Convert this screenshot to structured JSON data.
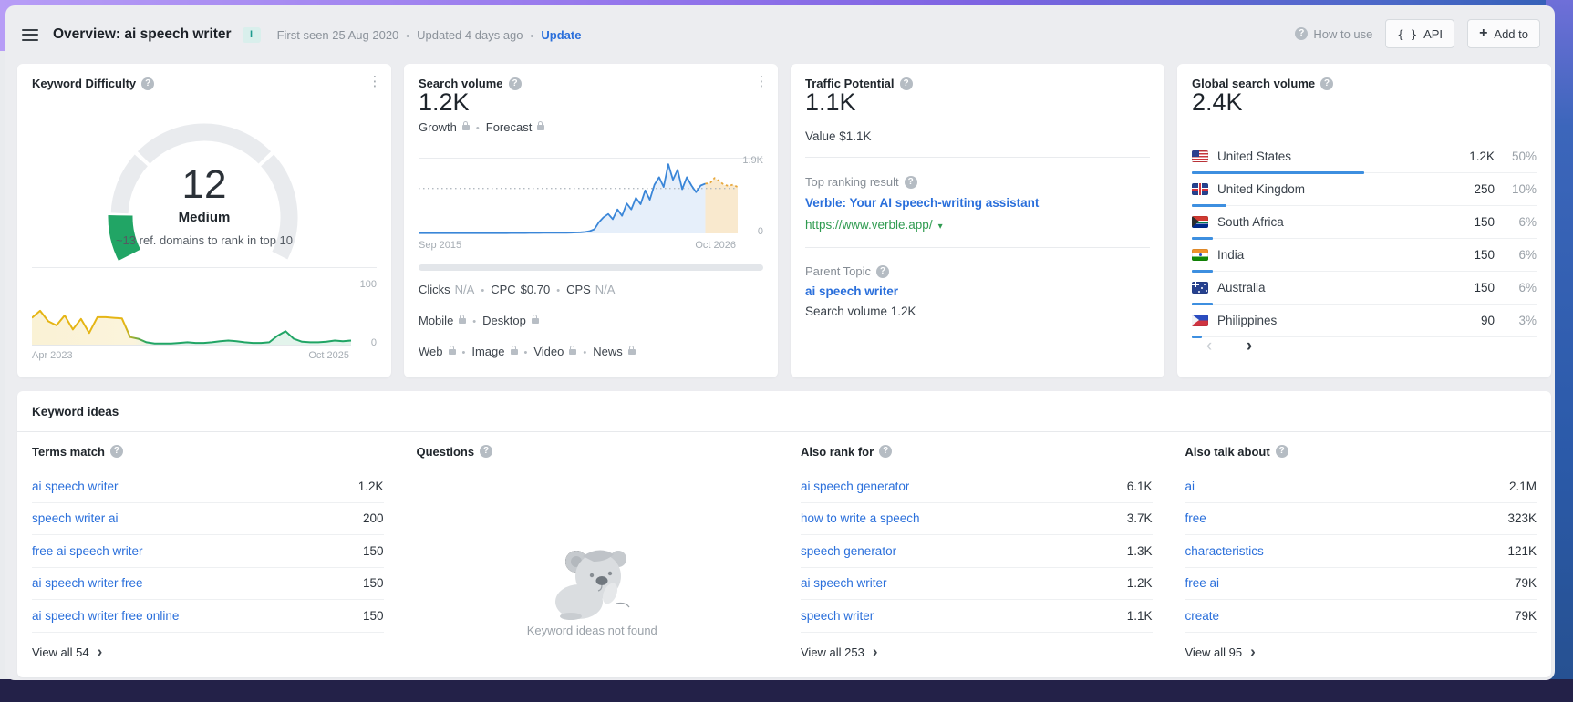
{
  "header": {
    "title": "Overview: ai speech writer",
    "info_badge": "I",
    "first_seen": "First seen 25 Aug 2020",
    "updated": "Updated 4 days ago",
    "update_link": "Update",
    "how_to_use": "How to use",
    "api_label": "API",
    "add_to_label": "Add to"
  },
  "cards": {
    "keyword_difficulty": {
      "title": "Keyword Difficulty",
      "value": 12,
      "label": "Medium",
      "subtitle": "~13 ref. domains to rank in top 10",
      "axis_max": "100",
      "axis_min": "0",
      "date_start": "Apr 2023",
      "date_end": "Oct 2025"
    },
    "search_volume": {
      "title": "Search volume",
      "value": "1.2K",
      "growth_label": "Growth",
      "forecast_label": "Forecast",
      "peak_label": "1.9K",
      "axis_min": "0",
      "date_start": "Sep 2015",
      "date_end": "Oct 2026",
      "metrics": {
        "clicks_label": "Clicks",
        "clicks_value": "N/A",
        "cpc_label": "CPC",
        "cpc_value": "$0.70",
        "cps_label": "CPS",
        "cps_value": "N/A"
      },
      "mobile_label": "Mobile",
      "desktop_label": "Desktop",
      "types": [
        "Web",
        "Image",
        "Video",
        "News"
      ]
    },
    "traffic_potential": {
      "title": "Traffic Potential",
      "value": "1.1K",
      "value_line": "Value $1.1K",
      "top_ranking_label": "Top ranking result",
      "top_result_title": "Verble: Your AI speech-writing assistant",
      "top_result_url": "https://www.verble.app/",
      "parent_topic_label": "Parent Topic",
      "parent_topic": "ai speech writer",
      "parent_volume": "Search volume 1.2K"
    },
    "global_search_volume": {
      "title": "Global search volume",
      "value": "2.4K",
      "countries": [
        {
          "flag": "us",
          "name": "United States",
          "volume": "1.2K",
          "share": "50%",
          "bar": 50
        },
        {
          "flag": "gb",
          "name": "United Kingdom",
          "volume": "250",
          "share": "10%",
          "bar": 10
        },
        {
          "flag": "za",
          "name": "South Africa",
          "volume": "150",
          "share": "6%",
          "bar": 6
        },
        {
          "flag": "in",
          "name": "India",
          "volume": "150",
          "share": "6%",
          "bar": 6
        },
        {
          "flag": "au",
          "name": "Australia",
          "volume": "150",
          "share": "6%",
          "bar": 6
        },
        {
          "flag": "ph",
          "name": "Philippines",
          "volume": "90",
          "share": "3%",
          "bar": 3
        }
      ]
    }
  },
  "keyword_ideas": {
    "title": "Keyword ideas",
    "columns": [
      {
        "header": "Terms match",
        "rows": [
          [
            "ai speech writer",
            "1.2K"
          ],
          [
            "speech writer ai",
            "200"
          ],
          [
            "free ai speech writer",
            "150"
          ],
          [
            "ai speech writer free",
            "150"
          ],
          [
            "ai speech writer free online",
            "150"
          ]
        ],
        "view_all": "View all 54"
      },
      {
        "header": "Questions",
        "empty": "Keyword ideas not found"
      },
      {
        "header": "Also rank for",
        "rows": [
          [
            "ai speech generator",
            "6.1K"
          ],
          [
            "how to write a speech",
            "3.7K"
          ],
          [
            "speech generator",
            "1.3K"
          ],
          [
            "ai speech writer",
            "1.2K"
          ],
          [
            "speech writer",
            "1.1K"
          ]
        ],
        "view_all": "View all 253"
      },
      {
        "header": "Also talk about",
        "rows": [
          [
            "ai",
            "2.1M"
          ],
          [
            "free",
            "323K"
          ],
          [
            "characteristics",
            "121K"
          ],
          [
            "free ai",
            "79K"
          ],
          [
            "create",
            "79K"
          ]
        ],
        "view_all": "View all 95"
      }
    ]
  },
  "colors": {
    "link_blue": "#2a6fdb",
    "url_green": "#2f9b50",
    "kd_green": "#21a565",
    "kd_yellow": "#e5b515",
    "sv_blue": "#3a86d8",
    "forecast_orange": "#e7a83c",
    "bar_blue": "#3d8fe0",
    "badge_teal_bg": "#d9efec"
  },
  "chart_data": [
    {
      "id": "kd_gauge",
      "type": "gauge",
      "title": "Keyword Difficulty",
      "value": 12,
      "max": 100,
      "segment_bounds": [
        10,
        30,
        70,
        100
      ],
      "label": "Medium"
    },
    {
      "id": "kd_history",
      "type": "area",
      "title": "Keyword Difficulty over time",
      "x_start": "Apr 2023",
      "x_end": "Oct 2025",
      "ylim": [
        0,
        100
      ],
      "values": [
        46,
        58,
        40,
        33,
        50,
        26,
        44,
        20,
        47,
        47,
        46,
        45,
        13,
        10,
        4,
        2,
        2,
        2,
        3,
        4,
        3,
        3,
        4,
        6,
        7,
        6,
        4,
        3,
        3,
        4,
        15,
        23,
        10,
        5,
        4,
        4,
        5,
        7,
        6,
        7
      ]
    },
    {
      "id": "search_volume_trend",
      "type": "area",
      "title": "Monthly search volume with forecast",
      "x_start": "Sep 2015",
      "x_end": "Oct 2026",
      "ylim": [
        0,
        1900
      ],
      "current_volume_marker": 1200,
      "history": [
        8,
        8,
        8,
        8,
        8,
        8,
        8,
        8,
        8,
        8,
        8,
        8,
        8,
        8,
        8,
        8,
        8,
        8,
        8,
        8,
        10,
        10,
        10,
        10,
        12,
        12,
        12,
        14,
        14,
        16,
        16,
        18,
        18,
        20,
        24,
        30,
        40,
        60,
        110,
        300,
        430,
        520,
        380,
        640,
        470,
        800,
        640,
        950,
        780,
        1150,
        900,
        1300,
        1500,
        1240,
        1850,
        1430,
        1700,
        1180,
        1500,
        1280,
        1100,
        1280,
        1330
      ],
      "forecast": [
        1340,
        1480,
        1400,
        1300,
        1270,
        1300,
        1240
      ]
    },
    {
      "id": "global_share",
      "type": "bar",
      "title": "Global search volume by country",
      "categories": [
        "United States",
        "United Kingdom",
        "South Africa",
        "India",
        "Australia",
        "Philippines"
      ],
      "values": [
        50,
        10,
        6,
        6,
        6,
        3
      ],
      "unit": "%"
    }
  ]
}
